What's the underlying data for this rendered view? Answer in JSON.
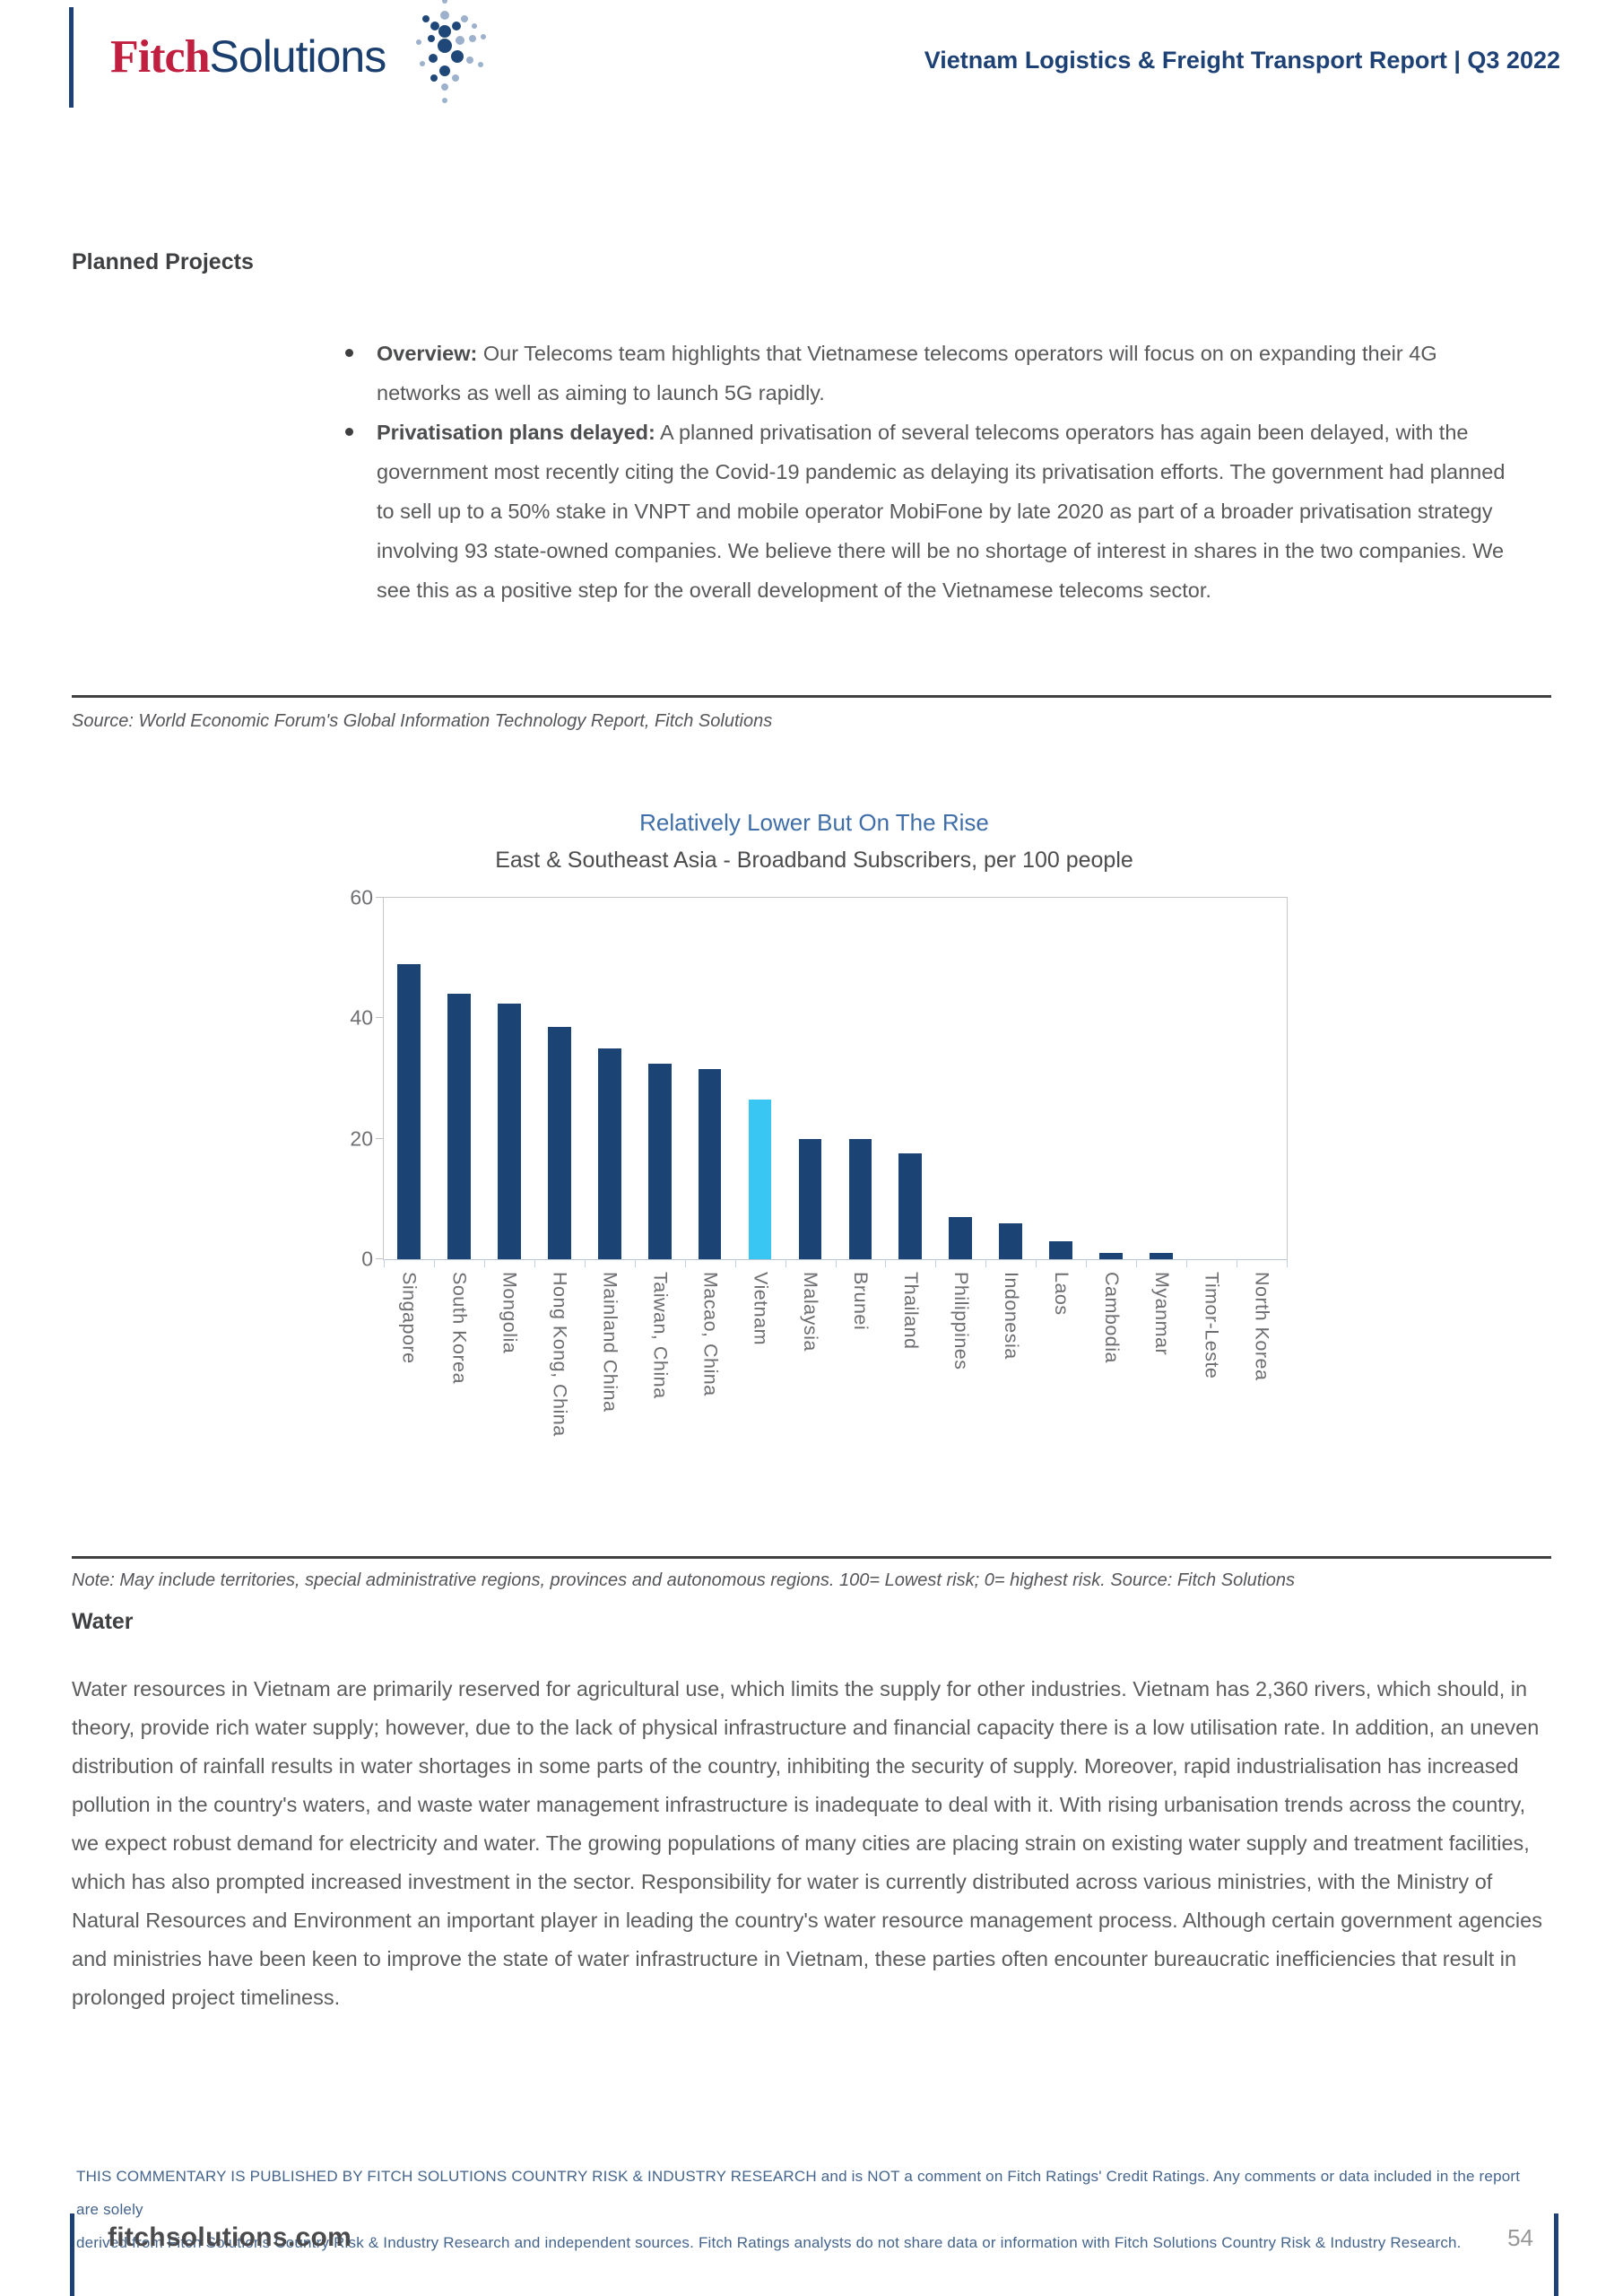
{
  "header": {
    "logo_fitch": "Fitch",
    "logo_solutions": "Solutions",
    "report_title": "Vietnam Logistics & Freight Transport Report | Q3 2022"
  },
  "planned_projects": {
    "heading": "Planned Projects",
    "bullets": [
      {
        "lead": "Overview:",
        "text": " Our Telecoms team highlights that Vietnamese telecoms operators will focus on on expanding their 4G networks as well as aiming to launch 5G rapidly."
      },
      {
        "lead": "Privatisation plans delayed:",
        "text": " A planned privatisation of several telecoms operators has again been delayed, with the government most recently citing the Covid-19 pandemic as delaying its privatisation efforts. The government had planned to sell up to a 50% stake in VNPT and mobile operator MobiFone by late 2020 as part of a broader privatisation strategy involving 93 state-owned companies. We believe there will be no shortage of interest in shares in the two companies. We see this as a positive step for the overall development of the Vietnamese telecoms sector."
      }
    ],
    "source": "Source: World Economic Forum's Global Information Technology Report, Fitch Solutions"
  },
  "chart_data": {
    "type": "bar",
    "title": "Relatively Lower But On The Rise",
    "subtitle": "East & Southeast Asia - Broadband Subscribers, per 100 people",
    "categories": [
      "Singapore",
      "South Korea",
      "Mongolia",
      "Hong Kong, China",
      "Mainland China",
      "Taiwan, China",
      "Macao, China",
      "Vietnam",
      "Malaysia",
      "Brunei",
      "Thailand",
      "Philippines",
      "Indonesia",
      "Laos",
      "Cambodia",
      "Myanmar",
      "Timor-Leste",
      "North Korea"
    ],
    "values": [
      49,
      44,
      42.5,
      38.5,
      35,
      32.5,
      31.5,
      26.5,
      20,
      20,
      17.5,
      7,
      6,
      3,
      1,
      1,
      0,
      0
    ],
    "highlight_category": "Vietnam",
    "bar_color": "#1b4373",
    "highlight_color": "#3ac6f3",
    "ylim": [
      0,
      60
    ],
    "yticks": [
      0,
      20,
      40,
      60
    ],
    "grid": false,
    "legend": false,
    "note": "Note: May include territories, special administrative regions, provinces and autonomous regions. 100= Lowest risk; 0= highest risk. Source: Fitch Solutions"
  },
  "water": {
    "heading": "Water",
    "paragraph": "Water resources in Vietnam are primarily reserved for agricultural use, which limits the supply for other industries. Vietnam has 2,360 rivers, which should, in theory, provide rich water supply; however, due to the lack of physical infrastructure and financial capacity there is a low utilisation rate. In addition, an uneven distribution of rainfall results in water shortages in some parts of the country, inhibiting the security of supply. Moreover, rapid industrialisation has increased pollution in the country's waters, and waste water management infrastructure is inadequate to deal with it. With rising urbanisation trends across the country, we expect robust demand for electricity and water. The growing populations of many cities are placing strain on existing water supply and treatment facilities, which has also prompted increased investment in the sector. Responsibility for water is currently distributed across various ministries, with the Ministry of Natural Resources and Environment an important player in leading the country's water resource management process. Although certain government agencies and ministries have been keen to improve the state of water infrastructure in Vietnam, these parties often encounter bureaucratic inefficiencies that result in prolonged project timeliness."
  },
  "footer": {
    "disclaimer_line1": "THIS COMMENTARY IS PUBLISHED BY FITCH SOLUTIONS COUNTRY RISK & INDUSTRY RESEARCH and is NOT a comment on Fitch Ratings' Credit Ratings. Any comments or data included in the report are solely",
    "disclaimer_line2": "derived from Fitch Solutions Country Risk & Industry Research and independent sources. Fitch Ratings analysts do not share data or information with Fitch Solutions Country Risk & Industry Research.",
    "site": "fitchsolutions.com",
    "page_number": "54"
  }
}
